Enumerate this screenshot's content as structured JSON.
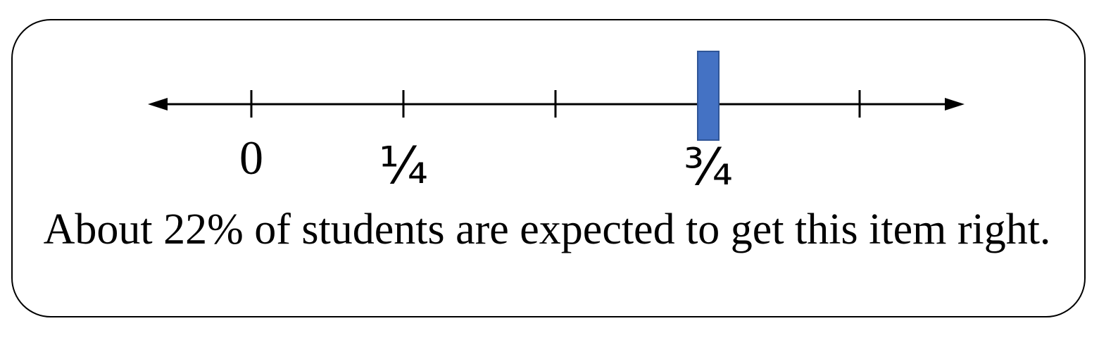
{
  "number_line": {
    "tick_labels": {
      "zero": "0",
      "quarter": "¼",
      "three_quarters": "¾"
    },
    "marker": {
      "value": 0.75,
      "color": "#4472c4",
      "border_color": "#2f5597"
    }
  },
  "caption": "About 22% of students are expected to get this item right."
}
